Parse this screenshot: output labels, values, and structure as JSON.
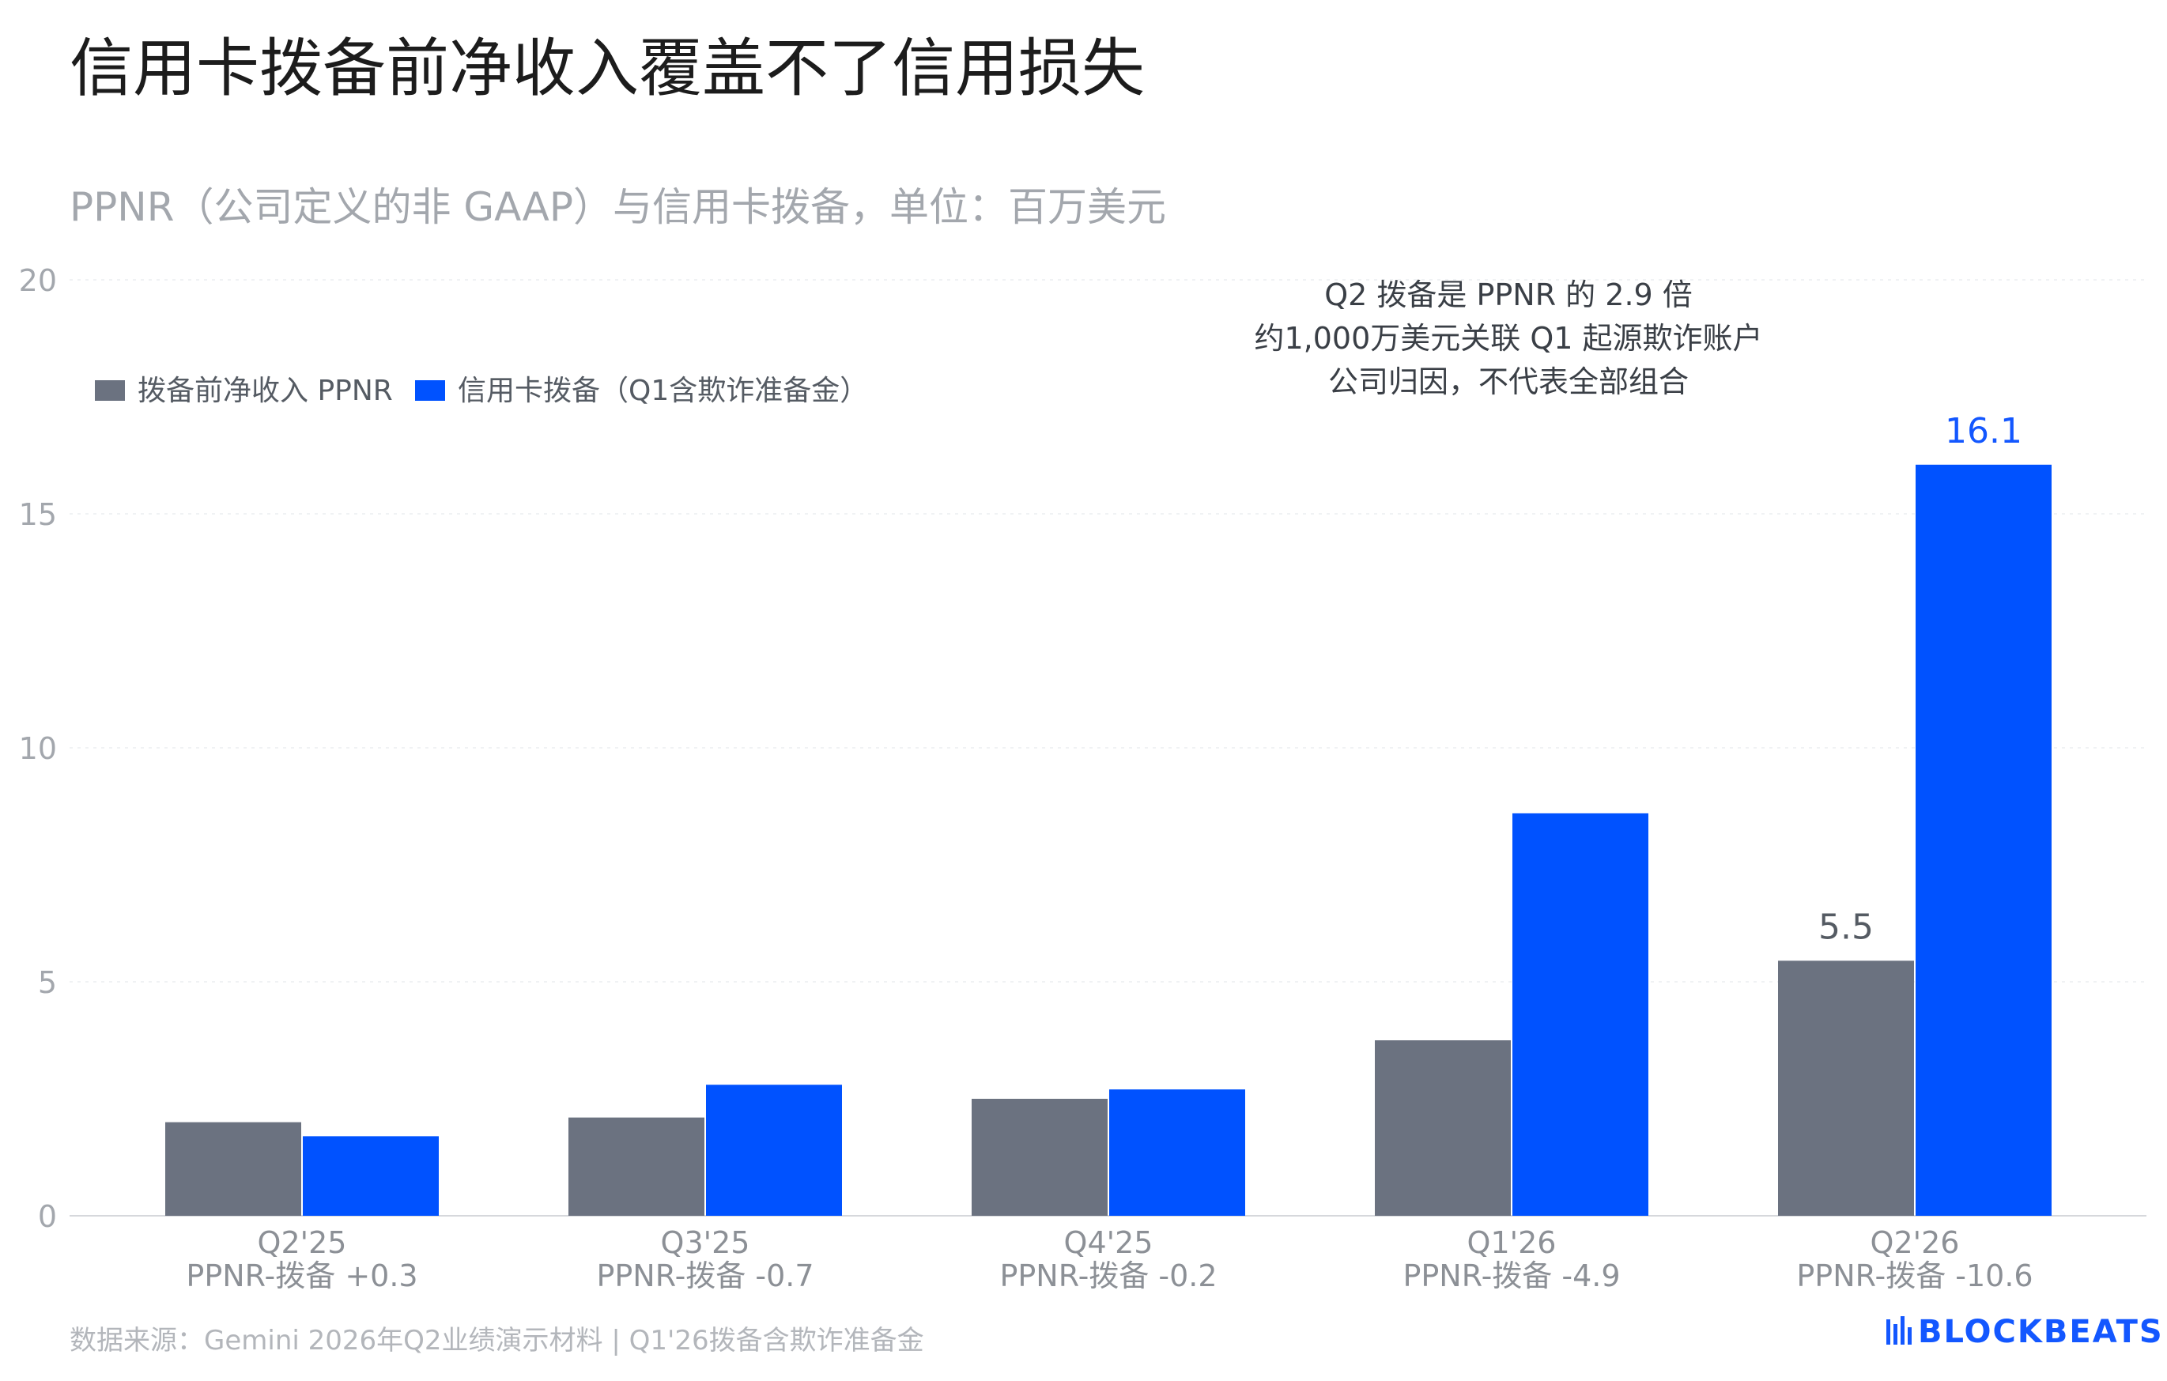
{
  "title": "信用卡拨备前净收入覆盖不了信用损失",
  "subtitle": "PPNR（公司定义的非 GAAP）与信用卡拨备，单位：百万美元",
  "source": "数据来源：Gemini 2026年Q2业绩演示材料 | Q1'26拨备含欺诈准备金",
  "brand": "BLOCKBEATS",
  "colors": {
    "ppnr": "#6b7280",
    "provision": "#0052ff",
    "provision_label": "#1357ff"
  },
  "chart_data": {
    "type": "bar",
    "categories": [
      "Q2'25",
      "Q3'25",
      "Q4'25",
      "Q1'26",
      "Q2'26"
    ],
    "category_sublabels": [
      "PPNR-拨备 +0.3",
      "PPNR-拨备 -0.7",
      "PPNR-拨备 -0.2",
      "PPNR-拨备 -4.9",
      "PPNR-拨备 -10.6"
    ],
    "series": [
      {
        "name": "拨备前净收入 PPNR",
        "values": [
          2.0,
          2.1,
          2.5,
          3.75,
          5.45
        ]
      },
      {
        "name": "信用卡拨备（Q1含欺诈准备金）",
        "values": [
          1.7,
          2.8,
          2.7,
          8.6,
          16.05
        ]
      }
    ],
    "data_labels": [
      {
        "series": 0,
        "index": 4,
        "text": "5.5"
      },
      {
        "series": 1,
        "index": 4,
        "text": "16.1"
      }
    ],
    "annotation": [
      "Q2 拨备是 PPNR 的 2.9 倍",
      "约1,000万美元关联 Q1 起源欺诈账户",
      "公司归因，不代表全部组合"
    ],
    "yticks": [
      "0",
      "5",
      "10",
      "15",
      "20"
    ],
    "ylim": [
      0,
      20
    ],
    "grid": true,
    "legend_position": "top-left"
  }
}
